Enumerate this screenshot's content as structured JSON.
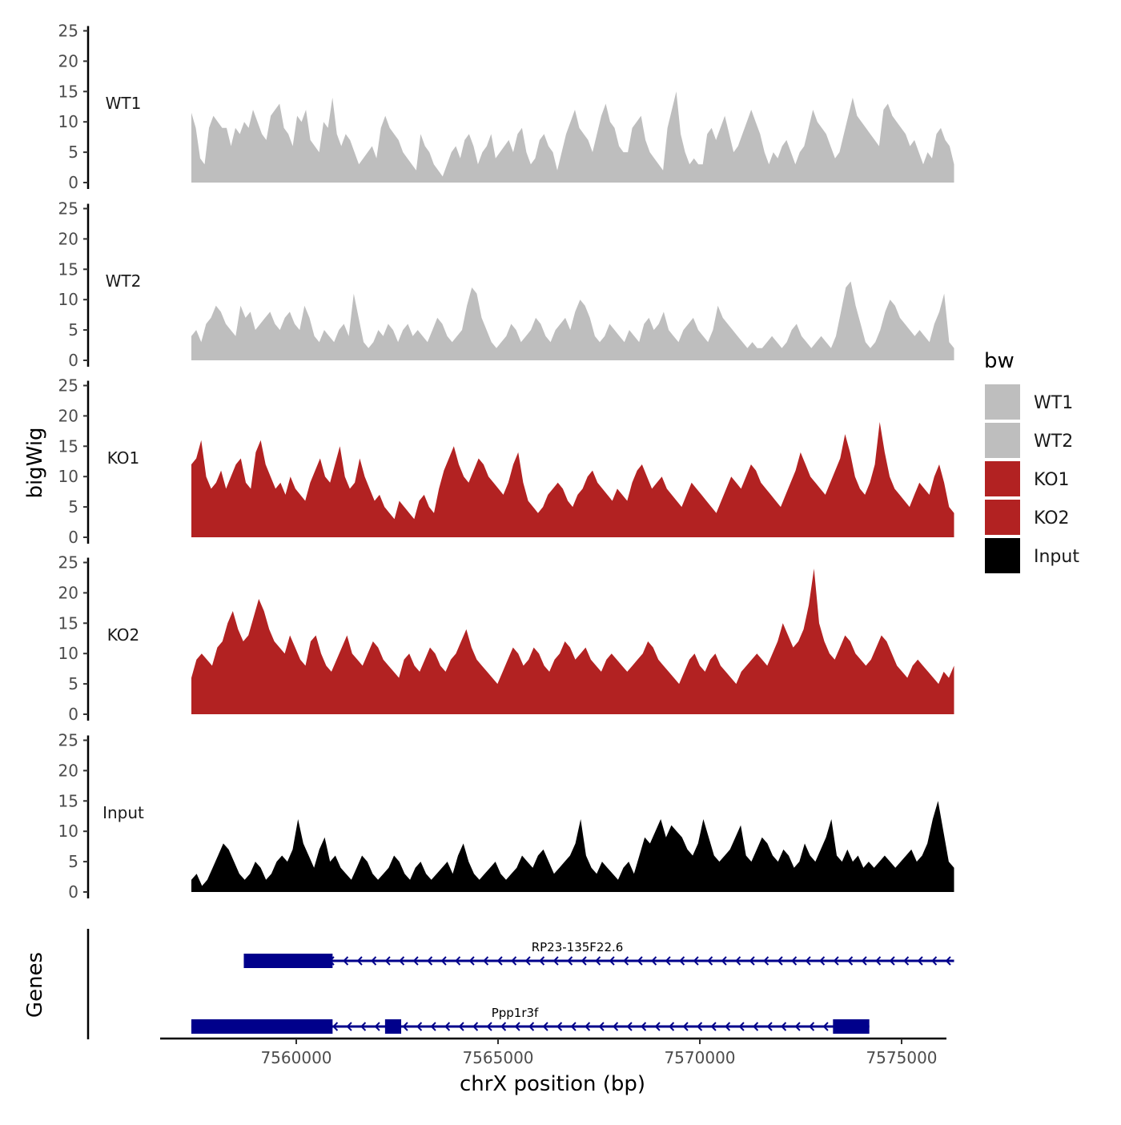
{
  "chart_data": {
    "type": "area",
    "y_axis_title": "bigWig",
    "x_axis_title": "chrX position (bp)",
    "genes_title": "Genes",
    "ylim": [
      0,
      25
    ],
    "y_ticks": [
      "0",
      "5",
      "10",
      "15",
      "20",
      "25"
    ],
    "x_range": [
      7556000,
      7577000
    ],
    "x_ticks": [
      {
        "value": 7560000,
        "label": "7560000"
      },
      {
        "value": 7565000,
        "label": "7565000"
      },
      {
        "value": 7570000,
        "label": "7570000"
      },
      {
        "value": 7575000,
        "label": "7575000"
      }
    ],
    "signal_start": 7557400,
    "signal_end": 7576300,
    "tracks": [
      {
        "name": "WT1",
        "color": "#bebebe",
        "values": [
          11.5,
          9,
          4,
          3,
          9,
          11,
          10,
          9,
          9,
          6,
          9,
          8,
          10,
          9,
          12,
          10,
          8,
          7,
          11,
          12,
          13,
          9,
          8,
          6,
          11,
          10,
          12,
          7,
          6,
          5,
          10,
          9,
          14,
          8,
          6,
          8,
          7,
          5,
          3,
          4,
          5,
          6,
          4,
          9,
          11,
          9,
          8,
          7,
          5,
          4,
          3,
          2,
          8,
          6,
          5,
          3,
          2,
          1,
          3,
          5,
          6,
          4,
          7,
          8,
          6,
          3,
          5,
          6,
          8,
          4,
          5,
          6,
          7,
          5,
          8,
          9,
          5,
          3,
          4,
          7,
          8,
          6,
          5,
          2,
          5,
          8,
          10,
          12,
          9,
          8,
          7,
          5,
          8,
          11,
          13,
          10,
          9,
          6,
          5,
          5,
          9,
          10,
          11,
          7,
          5,
          4,
          3,
          2,
          9,
          12,
          15,
          8,
          5,
          3,
          4,
          3,
          3,
          8,
          9,
          7,
          9,
          11,
          8,
          5,
          6,
          8,
          10,
          12,
          10,
          8,
          5,
          3,
          5,
          4,
          6,
          7,
          5,
          3,
          5,
          6,
          9,
          12,
          10,
          9,
          8,
          6,
          4,
          5,
          8,
          11,
          14,
          11,
          10,
          9,
          8,
          7,
          6,
          12,
          13,
          11,
          10,
          9,
          8,
          6,
          7,
          5,
          3,
          5,
          4,
          8,
          9,
          7,
          6,
          3
        ]
      },
      {
        "name": "WT2",
        "color": "#bebebe",
        "values": [
          4,
          5,
          3,
          6,
          7,
          9,
          8,
          6,
          5,
          4,
          9,
          7,
          8,
          5,
          6,
          7,
          8,
          6,
          5,
          7,
          8,
          6,
          5,
          9,
          7,
          4,
          3,
          5,
          4,
          3,
          5,
          6,
          4,
          11,
          7,
          3,
          2,
          3,
          5,
          4,
          6,
          5,
          3,
          5,
          6,
          4,
          5,
          4,
          3,
          5,
          7,
          6,
          4,
          3,
          4,
          5,
          9,
          12,
          11,
          7,
          5,
          3,
          2,
          3,
          4,
          6,
          5,
          3,
          4,
          5,
          7,
          6,
          4,
          3,
          5,
          6,
          7,
          5,
          8,
          10,
          9,
          7,
          4,
          3,
          4,
          6,
          5,
          4,
          3,
          5,
          4,
          3,
          6,
          7,
          5,
          6,
          8,
          5,
          4,
          3,
          5,
          6,
          7,
          5,
          4,
          3,
          5,
          9,
          7,
          6,
          5,
          4,
          3,
          2,
          3,
          2,
          2,
          3,
          4,
          3,
          2,
          3,
          5,
          6,
          4,
          3,
          2,
          3,
          4,
          3,
          2,
          4,
          8,
          12,
          13,
          9,
          6,
          3,
          2,
          3,
          5,
          8,
          10,
          9,
          7,
          6,
          5,
          4,
          5,
          4,
          3,
          6,
          8,
          11,
          3,
          2
        ]
      },
      {
        "name": "KO1",
        "color": "#b22222",
        "values": [
          12,
          13,
          16,
          10,
          8,
          9,
          11,
          8,
          10,
          12,
          13,
          9,
          8,
          14,
          16,
          12,
          10,
          8,
          9,
          7,
          10,
          8,
          7,
          6,
          9,
          11,
          13,
          10,
          9,
          12,
          15,
          10,
          8,
          9,
          13,
          10,
          8,
          6,
          7,
          5,
          4,
          3,
          6,
          5,
          4,
          3,
          6,
          7,
          5,
          4,
          8,
          11,
          13,
          15,
          12,
          10,
          9,
          11,
          13,
          12,
          10,
          9,
          8,
          7,
          9,
          12,
          14,
          9,
          6,
          5,
          4,
          5,
          7,
          8,
          9,
          8,
          6,
          5,
          7,
          8,
          10,
          11,
          9,
          8,
          7,
          6,
          8,
          7,
          6,
          9,
          11,
          12,
          10,
          8,
          9,
          10,
          8,
          7,
          6,
          5,
          7,
          9,
          8,
          7,
          6,
          5,
          4,
          6,
          8,
          10,
          9,
          8,
          10,
          12,
          11,
          9,
          8,
          7,
          6,
          5,
          7,
          9,
          11,
          14,
          12,
          10,
          9,
          8,
          7,
          9,
          11,
          13,
          17,
          14,
          10,
          8,
          7,
          9,
          12,
          19,
          14,
          10,
          8,
          7,
          6,
          5,
          7,
          9,
          8,
          7,
          10,
          12,
          9,
          5,
          4
        ]
      },
      {
        "name": "KO2",
        "color": "#b22222",
        "values": [
          6,
          9,
          10,
          9,
          8,
          11,
          12,
          15,
          17,
          14,
          12,
          13,
          16,
          19,
          17,
          14,
          12,
          11,
          10,
          13,
          11,
          9,
          8,
          12,
          13,
          10,
          8,
          7,
          9,
          11,
          13,
          10,
          9,
          8,
          10,
          12,
          11,
          9,
          8,
          7,
          6,
          9,
          10,
          8,
          7,
          9,
          11,
          10,
          8,
          7,
          9,
          10,
          12,
          14,
          11,
          9,
          8,
          7,
          6,
          5,
          7,
          9,
          11,
          10,
          8,
          9,
          11,
          10,
          8,
          7,
          9,
          10,
          12,
          11,
          9,
          10,
          11,
          9,
          8,
          7,
          9,
          10,
          9,
          8,
          7,
          8,
          9,
          10,
          12,
          11,
          9,
          8,
          7,
          6,
          5,
          7,
          9,
          10,
          8,
          7,
          9,
          10,
          8,
          7,
          6,
          5,
          7,
          8,
          9,
          10,
          9,
          8,
          10,
          12,
          15,
          13,
          11,
          12,
          14,
          18,
          24,
          15,
          12,
          10,
          9,
          11,
          13,
          12,
          10,
          9,
          8,
          9,
          11,
          13,
          12,
          10,
          8,
          7,
          6,
          8,
          9,
          8,
          7,
          6,
          5,
          7,
          6,
          8
        ]
      },
      {
        "name": "Input",
        "color": "#000000",
        "values": [
          2,
          3,
          1,
          2,
          4,
          6,
          8,
          7,
          5,
          3,
          2,
          3,
          5,
          4,
          2,
          3,
          5,
          6,
          5,
          7,
          12,
          8,
          6,
          4,
          7,
          9,
          5,
          6,
          4,
          3,
          2,
          4,
          6,
          5,
          3,
          2,
          3,
          4,
          6,
          5,
          3,
          2,
          4,
          5,
          3,
          2,
          3,
          4,
          5,
          3,
          6,
          8,
          5,
          3,
          2,
          3,
          4,
          5,
          3,
          2,
          3,
          4,
          6,
          5,
          4,
          6,
          7,
          5,
          3,
          4,
          5,
          6,
          8,
          12,
          6,
          4,
          3,
          5,
          4,
          3,
          2,
          4,
          5,
          3,
          6,
          9,
          8,
          10,
          12,
          9,
          11,
          10,
          9,
          7,
          6,
          8,
          12,
          9,
          6,
          5,
          6,
          7,
          9,
          11,
          6,
          5,
          7,
          9,
          8,
          6,
          5,
          7,
          6,
          4,
          5,
          8,
          6,
          5,
          7,
          9,
          12,
          6,
          5,
          7,
          5,
          6,
          4,
          5,
          4,
          5,
          6,
          5,
          4,
          5,
          6,
          7,
          5,
          6,
          8,
          12,
          15,
          10,
          5,
          4
        ]
      }
    ],
    "legend": {
      "title": "bw",
      "position": "right",
      "items": [
        {
          "label": "WT1",
          "color": "#bebebe"
        },
        {
          "label": "WT2",
          "color": "#bebebe"
        },
        {
          "label": "KO1",
          "color": "#b22222"
        },
        {
          "label": "KO2",
          "color": "#b22222"
        },
        {
          "label": "Input",
          "color": "#000000"
        }
      ]
    },
    "genes": [
      {
        "name": "RP23-135F22.6",
        "start": 7558700,
        "end": 7576300,
        "strand": "-",
        "exons": [
          {
            "start": 7558700,
            "end": 7560900
          }
        ]
      },
      {
        "name": "Ppp1r3f",
        "start": 7557400,
        "end": 7574200,
        "strand": "-",
        "exons": [
          {
            "start": 7557400,
            "end": 7560900
          },
          {
            "start": 7562200,
            "end": 7562600
          },
          {
            "start": 7573300,
            "end": 7574200
          }
        ]
      }
    ],
    "gene_color": "#00008b"
  }
}
